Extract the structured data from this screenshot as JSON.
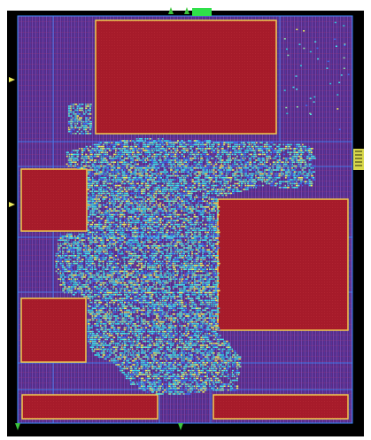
{
  "colors": {
    "background": "#ffffff",
    "die_frame": "#000000",
    "core_fill": "#6a2f8c",
    "macro_fill": "#a61b2a",
    "macro_border": "#f2c94c",
    "power_stripe": "#3a8cff",
    "std_cell_cyan": "#43e0e8",
    "std_cell_yellow": "#e7e95a",
    "std_cell_blue": "#3b6cf0",
    "pin_marker": "#3cc43c",
    "io_marker": "#e8e85a"
  },
  "macros": [
    {
      "name": "macro-top-center"
    },
    {
      "name": "macro-left-upper"
    },
    {
      "name": "macro-right-middle"
    },
    {
      "name": "macro-left-lower"
    },
    {
      "name": "macro-bottom-left"
    },
    {
      "name": "macro-bottom-right"
    }
  ],
  "std_cell_region": {
    "name": "standard-cell-cluster"
  }
}
